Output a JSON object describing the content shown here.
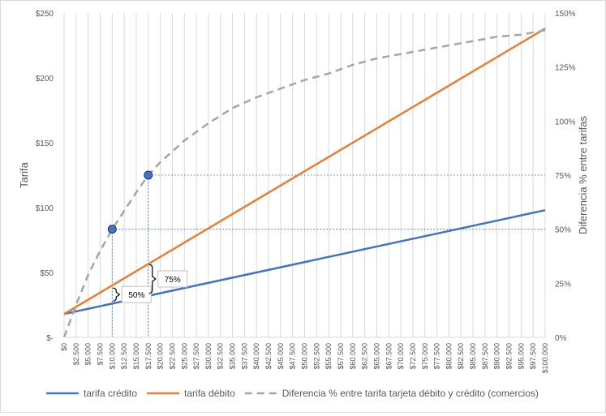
{
  "chart_data": {
    "type": "line",
    "x_ticks": [
      "$0",
      "$2.500",
      "$5.000",
      "$7.500",
      "$10.000",
      "$12.500",
      "$15.000",
      "$17.500",
      "$20.000",
      "$22.500",
      "$25.000",
      "$27.500",
      "$30.000",
      "$32.500",
      "$35.000",
      "$37.500",
      "$40.000",
      "$42.500",
      "$45.000",
      "$47.500",
      "$50.000",
      "$52.500",
      "$55.000",
      "$57.500",
      "$60.000",
      "$62.500",
      "$65.000",
      "$67.500",
      "$70.000",
      "$72.500",
      "$75.000",
      "$77.500",
      "$80.000",
      "$82.500",
      "$85.000",
      "$87.500",
      "$90.000",
      "$92.500",
      "$95.000",
      "$97.500",
      "$100.000"
    ],
    "xlim": [
      0,
      100000
    ],
    "ylabel_left": "Tarifa",
    "ylim_left": [
      0,
      250
    ],
    "y_ticks_left": [
      "$-",
      "$50",
      "$100",
      "$150",
      "$200",
      "$250"
    ],
    "ylabel_right": "Diferencia % entre tarifas",
    "ylim_right": [
      0,
      150
    ],
    "y_ticks_right": [
      "0%",
      "25%",
      "50%",
      "75%",
      "100%",
      "125%",
      "150%"
    ],
    "grid": "vertical",
    "legend_position": "bottom",
    "series": [
      {
        "name": "tarifa crédito",
        "axis": "left",
        "color": "#4472C4",
        "style": "solid",
        "x": [
          0,
          100000
        ],
        "y": [
          18,
          98
        ]
      },
      {
        "name": "tarifa débito",
        "axis": "left",
        "color": "#ED7D31",
        "style": "solid",
        "x": [
          0,
          100000
        ],
        "y": [
          18,
          238
        ]
      },
      {
        "name": "Diferencia % entre tarifa tarjeta débito y crédito (comercios)",
        "axis": "right",
        "color": "#A5A5A5",
        "style": "dashed",
        "x": [
          0,
          2500,
          5000,
          7500,
          10000,
          15000,
          17500,
          20000,
          25000,
          30000,
          35000,
          40000,
          45000,
          50000,
          55000,
          60000,
          65000,
          70000,
          75000,
          80000,
          85000,
          90000,
          95000,
          100000
        ],
        "y": [
          0,
          15,
          29,
          40,
          50,
          67,
          75,
          81,
          91,
          99,
          106,
          111,
          115,
          119,
          122,
          126,
          129,
          131,
          133,
          135,
          137,
          139,
          140,
          142
        ]
      }
    ],
    "markers": [
      {
        "x": 10000,
        "y_right": 50,
        "color": "#4472C4"
      },
      {
        "x": 17500,
        "y_right": 75,
        "color": "#4472C4"
      }
    ],
    "annotations": [
      {
        "text": "50%",
        "x": 10000,
        "y_low": 28,
        "y_high": 38
      },
      {
        "text": "75%",
        "x": 17500,
        "y_low": 34,
        "y_high": 56
      }
    ]
  }
}
